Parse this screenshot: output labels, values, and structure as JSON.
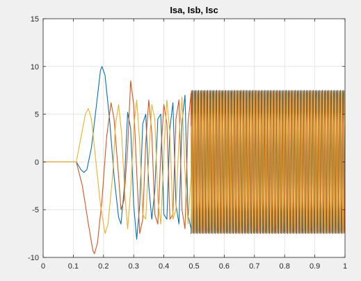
{
  "figure": {
    "background": "#f0f0f0",
    "axes_background": "#ffffff",
    "grid_color": "#dfdfdf",
    "axis_color": "#262626"
  },
  "chart_data": {
    "type": "line",
    "title": "Isa, Isb, Isc",
    "xlabel": "",
    "ylabel": "",
    "xlim": [
      0,
      1
    ],
    "ylim": [
      -10,
      15
    ],
    "grid": true,
    "xticks": [
      0,
      0.1,
      0.2,
      0.3,
      0.4,
      0.5,
      0.6,
      0.7,
      0.8,
      0.9,
      1
    ],
    "xtick_labels": [
      "0",
      "0.1",
      "0.2",
      "0.3",
      "0.4",
      "0.5",
      "0.6",
      "0.7",
      "0.8",
      "0.9",
      "1"
    ],
    "yticks": [
      -10,
      -5,
      0,
      5,
      10,
      15
    ],
    "ytick_labels": [
      "-10",
      "-5",
      "0",
      "5",
      "10",
      "15"
    ],
    "series": [
      {
        "color": "#0072bd",
        "points": [
          [
            0,
            0
          ],
          [
            0.11,
            0
          ],
          [
            0.125,
            -0.8
          ],
          [
            0.135,
            -1.1
          ],
          [
            0.145,
            -0.8
          ],
          [
            0.16,
            1.5
          ],
          [
            0.175,
            5.5
          ],
          [
            0.19,
            9.6
          ],
          [
            0.195,
            10
          ],
          [
            0.205,
            9.1
          ],
          [
            0.22,
            4.5
          ],
          [
            0.235,
            -1.5
          ],
          [
            0.25,
            -5.8
          ],
          [
            0.258,
            -6.5
          ],
          [
            0.268,
            -3
          ],
          [
            0.28,
            5.2
          ],
          [
            0.29,
            3.5
          ],
          [
            0.3,
            -4.5
          ],
          [
            0.31,
            -8.1
          ],
          [
            0.32,
            -4.5
          ],
          [
            0.33,
            4
          ],
          [
            0.34,
            5
          ],
          [
            0.35,
            -2.5
          ],
          [
            0.36,
            -6
          ],
          [
            0.37,
            -3
          ],
          [
            0.38,
            4.5
          ],
          [
            0.39,
            5
          ],
          [
            0.4,
            -5.5
          ],
          [
            0.41,
            -6
          ],
          [
            0.42,
            3.5
          ],
          [
            0.43,
            6.2
          ],
          [
            0.44,
            -4.5
          ],
          [
            0.45,
            -6.5
          ],
          [
            0.46,
            4.2
          ],
          [
            0.47,
            7
          ],
          [
            0.48,
            -5.5
          ],
          [
            0.49,
            -7
          ]
        ],
        "steady": {
          "from": 0.49,
          "to": 1.0,
          "amplitude": 7.5,
          "frequency": 100,
          "phase_deg": -90
        }
      },
      {
        "color": "#d95319",
        "points": [
          [
            0,
            0
          ],
          [
            0.11,
            0
          ],
          [
            0.13,
            -2.5
          ],
          [
            0.15,
            -6.5
          ],
          [
            0.165,
            -9.3
          ],
          [
            0.17,
            -9.6
          ],
          [
            0.18,
            -8.5
          ],
          [
            0.195,
            -4
          ],
          [
            0.21,
            2.5
          ],
          [
            0.225,
            6.2
          ],
          [
            0.235,
            4.5
          ],
          [
            0.25,
            -1.5
          ],
          [
            0.258,
            -5
          ],
          [
            0.268,
            -4
          ],
          [
            0.28,
            1.5
          ],
          [
            0.29,
            8.5
          ],
          [
            0.3,
            6
          ],
          [
            0.31,
            -1
          ],
          [
            0.32,
            -7.5
          ],
          [
            0.33,
            -6
          ],
          [
            0.34,
            2
          ],
          [
            0.35,
            6.5
          ],
          [
            0.36,
            3
          ],
          [
            0.37,
            -5.5
          ],
          [
            0.38,
            -6.5
          ],
          [
            0.39,
            1
          ],
          [
            0.4,
            6
          ],
          [
            0.41,
            4
          ],
          [
            0.42,
            -6
          ],
          [
            0.43,
            -5.5
          ],
          [
            0.44,
            4.5
          ],
          [
            0.45,
            6.5
          ],
          [
            0.46,
            -5
          ],
          [
            0.47,
            -7
          ],
          [
            0.48,
            4
          ],
          [
            0.49,
            7.2
          ]
        ],
        "steady": {
          "from": 0.49,
          "to": 1.0,
          "amplitude": 7.5,
          "frequency": 100,
          "phase_deg": 30
        }
      },
      {
        "color": "#edb120",
        "points": [
          [
            0,
            0
          ],
          [
            0.11,
            0
          ],
          [
            0.125,
            2.5
          ],
          [
            0.14,
            5
          ],
          [
            0.15,
            5.6
          ],
          [
            0.16,
            4.5
          ],
          [
            0.175,
            0
          ],
          [
            0.19,
            -4.5
          ],
          [
            0.205,
            -7.5
          ],
          [
            0.215,
            -6.5
          ],
          [
            0.23,
            -1.5
          ],
          [
            0.24,
            4
          ],
          [
            0.25,
            6
          ],
          [
            0.26,
            3
          ],
          [
            0.27,
            -3
          ],
          [
            0.28,
            -7
          ],
          [
            0.29,
            -3
          ],
          [
            0.3,
            3.5
          ],
          [
            0.31,
            6.5
          ],
          [
            0.32,
            2
          ],
          [
            0.33,
            -5.5
          ],
          [
            0.34,
            -6
          ],
          [
            0.35,
            0.5
          ],
          [
            0.36,
            6
          ],
          [
            0.37,
            4.5
          ],
          [
            0.38,
            -4
          ],
          [
            0.39,
            -6.5
          ],
          [
            0.4,
            1
          ],
          [
            0.41,
            6.5
          ],
          [
            0.42,
            3
          ],
          [
            0.43,
            -6
          ],
          [
            0.44,
            -5
          ],
          [
            0.45,
            2.5
          ],
          [
            0.46,
            6.8
          ],
          [
            0.47,
            -1
          ],
          [
            0.48,
            -6.5
          ],
          [
            0.49,
            -1.5
          ]
        ],
        "steady": {
          "from": 0.49,
          "to": 1.0,
          "amplitude": 7.5,
          "frequency": 100,
          "phase_deg": 150
        }
      }
    ]
  }
}
